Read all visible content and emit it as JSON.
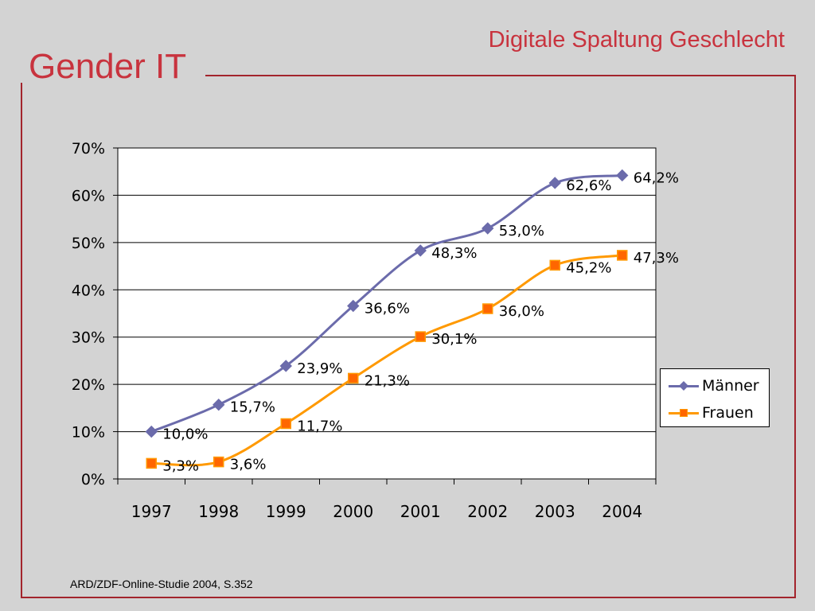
{
  "slide": {
    "title": "Gender IT",
    "subtitle": "Digitale Spaltung Geschlecht",
    "source": "ARD/ZDF-Online-Studie 2004, S.352"
  },
  "colors": {
    "title": "#c8333e",
    "frame": "#a3242c",
    "maenner": "#6b6bab",
    "frauen": "#ff9900",
    "frauen_marker": "#ff6600"
  },
  "chart_data": {
    "type": "line",
    "categories": [
      "1997",
      "1998",
      "1999",
      "2000",
      "2001",
      "2002",
      "2003",
      "2004"
    ],
    "series": [
      {
        "name": "Männer",
        "values": [
          10.0,
          15.7,
          23.9,
          36.6,
          48.3,
          53.0,
          62.6,
          64.2
        ],
        "labels": [
          "10,0%",
          "15,7%",
          "23,9%",
          "36,6%",
          "48,3%",
          "53,0%",
          "62,6%",
          "64,2%"
        ],
        "marker": "diamond"
      },
      {
        "name": "Frauen",
        "values": [
          3.3,
          3.6,
          11.7,
          21.3,
          30.1,
          36.0,
          45.2,
          47.3
        ],
        "labels": [
          "3,3%",
          "3,6%",
          "11,7%",
          "21,3%",
          "30,1%",
          "36,0%",
          "45,2%",
          "47,3%"
        ],
        "marker": "square"
      }
    ],
    "yticks": [
      "0%",
      "10%",
      "20%",
      "30%",
      "40%",
      "50%",
      "60%",
      "70%"
    ],
    "ylim": [
      0,
      70
    ],
    "grid": true,
    "legend": "right",
    "smooth": true
  }
}
